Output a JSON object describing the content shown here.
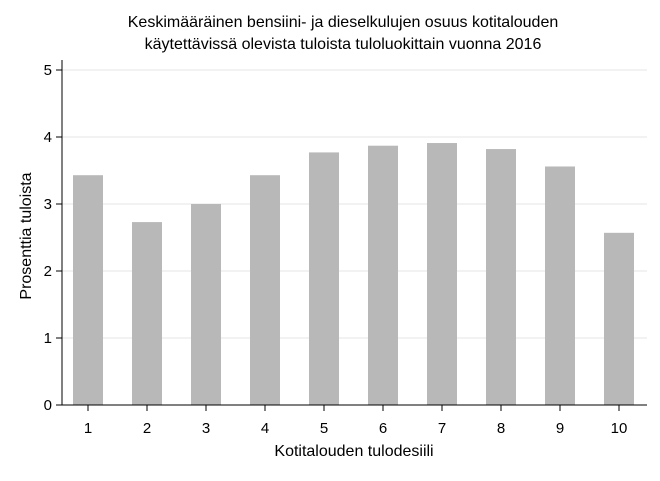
{
  "chart_data": {
    "type": "bar",
    "title": "Keskimääräinen bensiini- ja dieselkulujen osuus kotitalouden",
    "subtitle": "käytettävissä olevista tuloista tuloluokittain vuonna 2016",
    "xlabel": "Kotitalouden tulodesiili",
    "ylabel": "Prosenttia tuloista",
    "categories": [
      "1",
      "2",
      "3",
      "4",
      "5",
      "6",
      "7",
      "8",
      "9",
      "10"
    ],
    "values": [
      3.43,
      2.73,
      3.0,
      3.43,
      3.77,
      3.87,
      3.91,
      3.82,
      3.56,
      2.57
    ],
    "ylim": [
      0,
      5
    ],
    "yticks": [
      "0",
      "1",
      "2",
      "3",
      "4",
      "5"
    ],
    "grid": true,
    "legend": "none",
    "colors": {
      "bar": "#b8b8b8",
      "grid": "#e6e6e6",
      "axis": "#000000",
      "background": "#ffffff"
    }
  }
}
